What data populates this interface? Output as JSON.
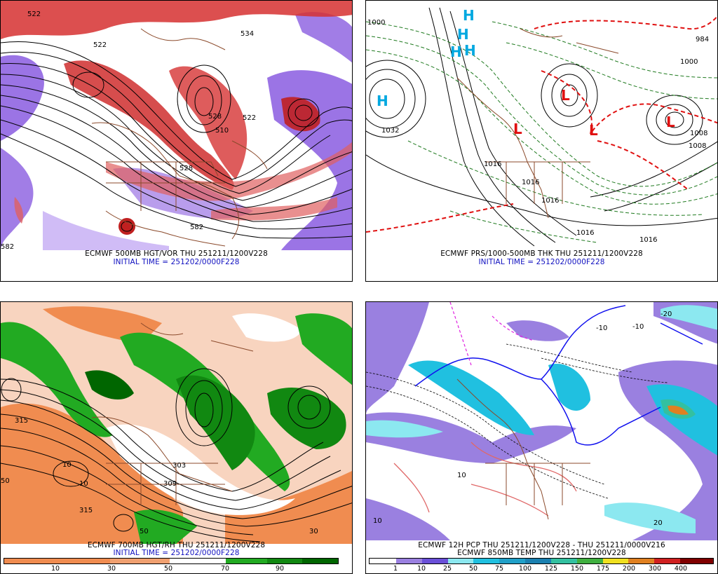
{
  "panels": {
    "top_left": {
      "caption_line1": "ECMWF 500MB HGT/VOR THU 251211/1200V228",
      "caption_line2": "INITIAL TIME = 251202/0000F228",
      "contour_labels": [
        "522",
        "534",
        "522",
        "528",
        "510",
        "522",
        "528",
        "582",
        "582"
      ]
    },
    "top_right": {
      "caption_line1": "ECMWF PRS/1000-500MB THK THU 251211/1200V228",
      "caption_line2": "INITIAL TIME = 251202/0000F228",
      "high_label": "H",
      "low_label": "L",
      "contour_labels": [
        "1000",
        "1032",
        "1016",
        "1008",
        "984",
        "1016",
        "1016",
        "1000",
        "1008",
        "1016",
        "1016"
      ]
    },
    "bottom_left": {
      "caption_line1": "ECMWF 700MB HGT/RH THU 251211/1200V228",
      "caption_line2": "INITIAL TIME = 251202/0000F228",
      "contour_labels": [
        "315",
        "309",
        "303",
        "10",
        "10",
        "50",
        "50",
        "315",
        "30"
      ],
      "colorbar": {
        "ticks": [
          "10",
          "30",
          "50",
          "70",
          "90"
        ],
        "colors": [
          "#ffffff",
          "#f08c50",
          "#f0a070",
          "#ffffff",
          "#ffffff",
          "#22aa22",
          "#118811",
          "#006600"
        ]
      }
    },
    "bottom_right": {
      "caption_line1": "ECMWF 12H PCP THU 251211/1200V228 - THU 251211/0000V216",
      "caption_line2": "ECMWF 850MB TEMP THU 251211/1200V228",
      "contour_labels": [
        "-10",
        "-10",
        "-20",
        "10",
        "20",
        "10"
      ],
      "colorbar": {
        "ticks": [
          "1",
          "10",
          "25",
          "50",
          "75",
          "100",
          "125",
          "150",
          "175",
          "200",
          "300",
          "400"
        ],
        "colors": [
          "#ffffff",
          "#9a80e0",
          "#6a50d8",
          "#8ce8f0",
          "#20c0e0",
          "#20a0c8",
          "#1a80b0",
          "#33c0a0",
          "#40b040",
          "#f0e020",
          "#e08020",
          "#d02020",
          "#800000"
        ]
      }
    }
  }
}
